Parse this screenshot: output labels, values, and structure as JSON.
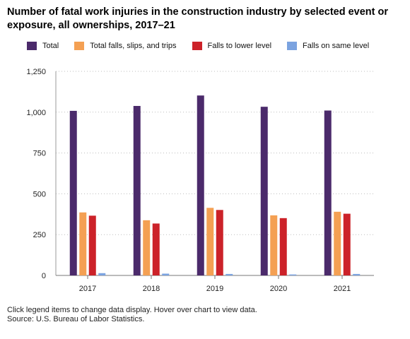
{
  "chart_data": {
    "type": "bar",
    "title": "Number of fatal work injuries in the construction industry by selected event or exposure, all ownerships, 2017–21",
    "xlabel": "",
    "ylabel": "",
    "categories": [
      "2017",
      "2018",
      "2019",
      "2020",
      "2021"
    ],
    "ylim": [
      0,
      1250
    ],
    "yticks": [
      0,
      250,
      500,
      750,
      1000,
      1250
    ],
    "ytick_labels": [
      "0",
      "250",
      "500",
      "750",
      "1,000",
      "1,250"
    ],
    "grid": "horizontal-dotted",
    "legend_position": "top-left",
    "series": [
      {
        "name": "Total",
        "color": "#4b2a6b",
        "values": [
          1008,
          1038,
          1102,
          1033,
          1010
        ]
      },
      {
        "name": "Total falls, slips, and trips",
        "color": "#f4a053",
        "values": [
          386,
          338,
          414,
          368,
          390
        ]
      },
      {
        "name": "Falls to lower level",
        "color": "#cc2229",
        "values": [
          366,
          318,
          401,
          351,
          378
        ]
      },
      {
        "name": "Falls on same level",
        "color": "#7ba3e0",
        "values": [
          14,
          11,
          9,
          6,
          9
        ]
      }
    ]
  },
  "footnote": {
    "line1": "Click legend items to change data display. Hover over chart to view data.",
    "line2": "Source: U.S. Bureau of Labor Statistics."
  }
}
